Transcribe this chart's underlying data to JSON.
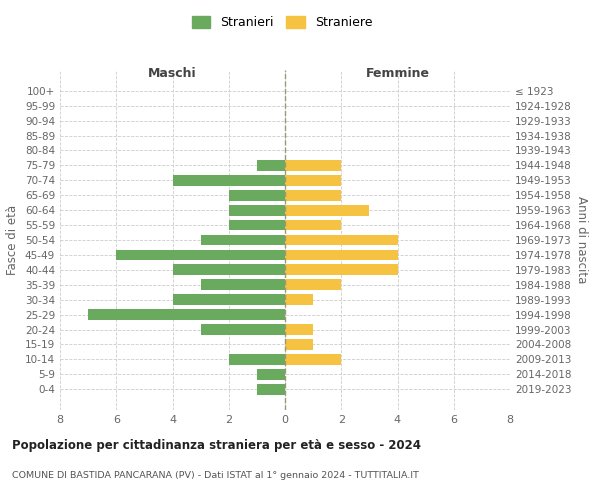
{
  "age_groups": [
    "100+",
    "95-99",
    "90-94",
    "85-89",
    "80-84",
    "75-79",
    "70-74",
    "65-69",
    "60-64",
    "55-59",
    "50-54",
    "45-49",
    "40-44",
    "35-39",
    "30-34",
    "25-29",
    "20-24",
    "15-19",
    "10-14",
    "5-9",
    "0-4"
  ],
  "birth_years": [
    "≤ 1923",
    "1924-1928",
    "1929-1933",
    "1934-1938",
    "1939-1943",
    "1944-1948",
    "1949-1953",
    "1954-1958",
    "1959-1963",
    "1964-1968",
    "1969-1973",
    "1974-1978",
    "1979-1983",
    "1984-1988",
    "1989-1993",
    "1994-1998",
    "1999-2003",
    "2004-2008",
    "2009-2013",
    "2014-2018",
    "2019-2023"
  ],
  "maschi": [
    0,
    0,
    0,
    0,
    0,
    1,
    4,
    2,
    2,
    2,
    3,
    6,
    4,
    3,
    4,
    7,
    3,
    0,
    2,
    1,
    1
  ],
  "femmine": [
    0,
    0,
    0,
    0,
    0,
    2,
    2,
    2,
    3,
    2,
    4,
    4,
    4,
    2,
    1,
    0,
    1,
    1,
    2,
    0,
    0
  ],
  "color_maschi": "#6aaa5e",
  "color_femmine": "#f5c242",
  "title": "Popolazione per cittadinanza straniera per età e sesso - 2024",
  "subtitle": "COMUNE DI BASTIDA PANCARANA (PV) - Dati ISTAT al 1° gennaio 2024 - TUTTITALIA.IT",
  "ylabel_left": "Fasce di età",
  "ylabel_right": "Anni di nascita",
  "xlabel_maschi": "Maschi",
  "xlabel_femmine": "Femmine",
  "legend_maschi": "Stranieri",
  "legend_femmine": "Straniere",
  "xlim": 8,
  "background_color": "#ffffff",
  "grid_color": "#cccccc"
}
